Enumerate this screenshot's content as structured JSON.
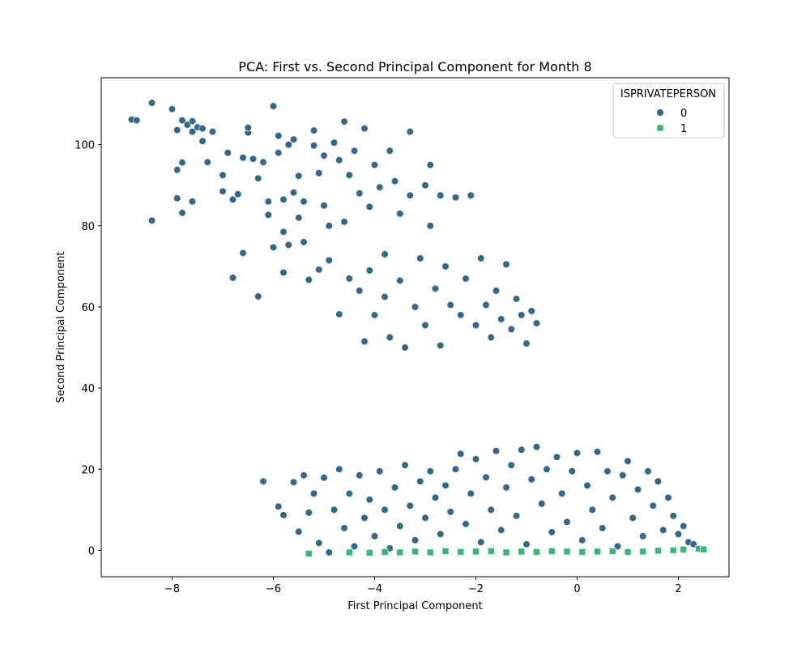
{
  "chart_data": {
    "type": "scatter",
    "title": "PCA: First vs. Second Principal Component for Month 8",
    "xlabel": "First Principal Component",
    "ylabel": "Second Principal Component",
    "xlim": [
      -9.4,
      3.0
    ],
    "ylim": [
      -6.5,
      116.5
    ],
    "xticks": [
      -8,
      -6,
      -4,
      -2,
      0,
      2
    ],
    "xtick_labels": [
      "−8",
      "−6",
      "−4",
      "−2",
      "0",
      "2"
    ],
    "yticks": [
      0,
      20,
      40,
      60,
      80,
      100
    ],
    "ytick_labels": [
      "0",
      "20",
      "40",
      "60",
      "80",
      "100"
    ],
    "grid": false,
    "legend": {
      "title": "ISPRIVATEPERSON",
      "placement": "top-right",
      "entries": [
        {
          "label": "0",
          "marker": "circle",
          "color": "#31688e"
        },
        {
          "label": "1",
          "marker": "square",
          "color": "#35b779"
        }
      ]
    },
    "series": [
      {
        "name": "0",
        "marker": "circle",
        "color": "#31688e",
        "points": [
          [
            -8.8,
            106.2
          ],
          [
            -8.7,
            106.0
          ],
          [
            -8.4,
            110.3
          ],
          [
            -8.4,
            81.3
          ],
          [
            -8.0,
            108.8
          ],
          [
            -7.9,
            103.6
          ],
          [
            -7.9,
            86.8
          ],
          [
            -7.9,
            93.8
          ],
          [
            -7.8,
            106.0
          ],
          [
            -7.8,
            83.2
          ],
          [
            -7.8,
            95.6
          ],
          [
            -7.7,
            104.9
          ],
          [
            -7.6,
            103.2
          ],
          [
            -7.6,
            105.8
          ],
          [
            -7.6,
            86.0
          ],
          [
            -7.5,
            104.3
          ],
          [
            -7.4,
            100.9
          ],
          [
            -7.4,
            104.0
          ],
          [
            -7.2,
            103.2
          ],
          [
            -7.3,
            95.7
          ],
          [
            -7.0,
            92.5
          ],
          [
            -7.0,
            88.5
          ],
          [
            -6.9,
            98.0
          ],
          [
            -6.8,
            86.5
          ],
          [
            -6.8,
            67.2
          ],
          [
            -6.7,
            87.8
          ],
          [
            -6.6,
            96.8
          ],
          [
            -6.6,
            73.3
          ],
          [
            -6.5,
            103.0
          ],
          [
            -6.5,
            104.2
          ],
          [
            -6.4,
            96.5
          ],
          [
            -6.3,
            91.7
          ],
          [
            -6.3,
            62.6
          ],
          [
            -6.2,
            95.7
          ],
          [
            -6.1,
            82.7
          ],
          [
            -6.1,
            86.0
          ],
          [
            -6.0,
            74.7
          ],
          [
            -6.0,
            109.5
          ],
          [
            -5.9,
            102.2
          ],
          [
            -5.9,
            98.0
          ],
          [
            -5.8,
            86.5
          ],
          [
            -5.8,
            78.5
          ],
          [
            -5.8,
            68.5
          ],
          [
            -5.7,
            100.0
          ],
          [
            -5.7,
            75.3
          ],
          [
            -5.6,
            88.2
          ],
          [
            -5.6,
            101.3
          ],
          [
            -5.5,
            92.3
          ],
          [
            -5.5,
            82.0
          ],
          [
            -5.4,
            86.0
          ],
          [
            -5.4,
            76.0
          ],
          [
            -5.3,
            66.7
          ],
          [
            -5.2,
            99.8
          ],
          [
            -5.2,
            103.5
          ],
          [
            -5.1,
            93.0
          ],
          [
            -5.1,
            69.2
          ],
          [
            -5.0,
            97.3
          ],
          [
            -5.0,
            85.0
          ],
          [
            -4.9,
            71.5
          ],
          [
            -4.9,
            80.0
          ],
          [
            -4.8,
            100.5
          ],
          [
            -4.7,
            96.2
          ],
          [
            -4.7,
            58.2
          ],
          [
            -4.6,
            105.7
          ],
          [
            -4.6,
            81.0
          ],
          [
            -4.5,
            92.5
          ],
          [
            -4.5,
            67.0
          ],
          [
            -4.4,
            98.5
          ],
          [
            -4.3,
            88.0
          ],
          [
            -4.3,
            64.0
          ],
          [
            -4.2,
            104.0
          ],
          [
            -4.2,
            51.5
          ],
          [
            -4.1,
            84.7
          ],
          [
            -4.1,
            69.0
          ],
          [
            -4.0,
            95.0
          ],
          [
            -4.0,
            58.0
          ],
          [
            -3.9,
            89.5
          ],
          [
            -3.8,
            73.0
          ],
          [
            -3.8,
            62.5
          ],
          [
            -3.7,
            98.5
          ],
          [
            -3.7,
            52.5
          ],
          [
            -3.6,
            91.0
          ],
          [
            -3.5,
            66.5
          ],
          [
            -3.5,
            83.0
          ],
          [
            -3.4,
            50.0
          ],
          [
            -3.3,
            87.5
          ],
          [
            -3.3,
            103.2
          ],
          [
            -3.2,
            60.0
          ],
          [
            -3.1,
            72.0
          ],
          [
            -3.0,
            90.0
          ],
          [
            -3.0,
            55.5
          ],
          [
            -2.9,
            95.0
          ],
          [
            -2.9,
            80.0
          ],
          [
            -2.8,
            64.5
          ],
          [
            -2.7,
            87.5
          ],
          [
            -2.7,
            50.5
          ],
          [
            -2.6,
            70.0
          ],
          [
            -2.5,
            60.5
          ],
          [
            -2.4,
            87.0
          ],
          [
            -2.3,
            58.0
          ],
          [
            -2.2,
            67.0
          ],
          [
            -2.1,
            87.5
          ],
          [
            -2.0,
            55.5
          ],
          [
            -1.9,
            72.0
          ],
          [
            -1.8,
            60.5
          ],
          [
            -1.7,
            52.5
          ],
          [
            -1.6,
            64.0
          ],
          [
            -1.5,
            57.0
          ],
          [
            -1.4,
            70.5
          ],
          [
            -1.3,
            54.5
          ],
          [
            -1.2,
            62.0
          ],
          [
            -1.1,
            58.0
          ],
          [
            -1.0,
            51.0
          ],
          [
            -0.9,
            59.0
          ],
          [
            -0.8,
            56.0
          ],
          [
            -6.2,
            17.0
          ],
          [
            -5.9,
            10.8
          ],
          [
            -5.8,
            8.7
          ],
          [
            -5.6,
            16.8
          ],
          [
            -5.5,
            4.6
          ],
          [
            -5.4,
            18.5
          ],
          [
            -5.3,
            9.3
          ],
          [
            -5.2,
            14.0
          ],
          [
            -5.1,
            1.8
          ],
          [
            -5.0,
            17.9
          ],
          [
            -4.9,
            -0.5
          ],
          [
            -4.8,
            10.0
          ],
          [
            -4.7,
            20.0
          ],
          [
            -4.6,
            5.5
          ],
          [
            -4.5,
            14.0
          ],
          [
            -4.4,
            1.0
          ],
          [
            -4.3,
            18.5
          ],
          [
            -4.2,
            8.0
          ],
          [
            -4.1,
            12.5
          ],
          [
            -4.0,
            3.5
          ],
          [
            -3.9,
            19.5
          ],
          [
            -3.8,
            10.0
          ],
          [
            -3.7,
            0.5
          ],
          [
            -3.6,
            15.5
          ],
          [
            -3.5,
            6.0
          ],
          [
            -3.4,
            21.0
          ],
          [
            -3.3,
            11.0
          ],
          [
            -3.2,
            2.5
          ],
          [
            -3.1,
            17.0
          ],
          [
            -3.0,
            8.0
          ],
          [
            -2.9,
            19.5
          ],
          [
            -2.8,
            13.0
          ],
          [
            -2.7,
            4.0
          ],
          [
            -2.6,
            16.0
          ],
          [
            -2.5,
            9.5
          ],
          [
            -2.4,
            20.0
          ],
          [
            -2.3,
            23.8
          ],
          [
            -2.2,
            6.5
          ],
          [
            -2.1,
            14.0
          ],
          [
            -2.0,
            22.5
          ],
          [
            -1.9,
            2.0
          ],
          [
            -1.8,
            18.0
          ],
          [
            -1.7,
            10.0
          ],
          [
            -1.6,
            24.5
          ],
          [
            -1.5,
            5.0
          ],
          [
            -1.4,
            15.5
          ],
          [
            -1.3,
            21.0
          ],
          [
            -1.2,
            8.5
          ],
          [
            -1.1,
            24.8
          ],
          [
            -1.0,
            1.5
          ],
          [
            -0.9,
            17.5
          ],
          [
            -0.8,
            25.5
          ],
          [
            -0.7,
            11.5
          ],
          [
            -0.6,
            20.0
          ],
          [
            -0.5,
            4.5
          ],
          [
            -0.4,
            23.0
          ],
          [
            -0.3,
            14.0
          ],
          [
            -0.2,
            7.0
          ],
          [
            -0.1,
            19.5
          ],
          [
            0.0,
            24.0
          ],
          [
            0.1,
            2.5
          ],
          [
            0.2,
            16.0
          ],
          [
            0.3,
            10.0
          ],
          [
            0.4,
            24.3
          ],
          [
            0.5,
            5.5
          ],
          [
            0.6,
            19.5
          ],
          [
            0.7,
            13.0
          ],
          [
            0.8,
            1.0
          ],
          [
            0.9,
            18.5
          ],
          [
            1.0,
            22.0
          ],
          [
            1.1,
            8.0
          ],
          [
            1.2,
            15.0
          ],
          [
            1.3,
            3.5
          ],
          [
            1.4,
            19.5
          ],
          [
            1.5,
            11.0
          ],
          [
            1.6,
            17.0
          ],
          [
            1.7,
            5.0
          ],
          [
            1.8,
            13.0
          ],
          [
            1.9,
            8.5
          ],
          [
            2.0,
            4.0
          ],
          [
            2.1,
            6.0
          ],
          [
            2.2,
            2.0
          ],
          [
            2.3,
            1.5
          ],
          [
            2.4,
            0.5
          ],
          [
            2.5,
            0.3
          ]
        ]
      },
      {
        "name": "1",
        "marker": "square",
        "color": "#35b779",
        "points": [
          [
            -5.3,
            -0.8
          ],
          [
            -4.5,
            -0.5
          ],
          [
            -4.1,
            -0.6
          ],
          [
            -3.8,
            -0.4
          ],
          [
            -3.5,
            -0.5
          ],
          [
            -3.2,
            -0.3
          ],
          [
            -2.9,
            -0.5
          ],
          [
            -2.6,
            -0.2
          ],
          [
            -2.3,
            -0.4
          ],
          [
            -2.0,
            -0.3
          ],
          [
            -1.7,
            -0.2
          ],
          [
            -1.4,
            -0.5
          ],
          [
            -1.1,
            -0.3
          ],
          [
            -0.8,
            -0.4
          ],
          [
            -0.5,
            -0.2
          ],
          [
            -0.2,
            -0.3
          ],
          [
            0.1,
            -0.4
          ],
          [
            0.4,
            -0.3
          ],
          [
            0.7,
            -0.2
          ],
          [
            1.0,
            -0.4
          ],
          [
            1.3,
            -0.3
          ],
          [
            1.6,
            -0.1
          ],
          [
            1.9,
            0.0
          ],
          [
            2.1,
            0.2
          ],
          [
            2.4,
            0.4
          ],
          [
            2.5,
            0.2
          ]
        ]
      }
    ]
  }
}
